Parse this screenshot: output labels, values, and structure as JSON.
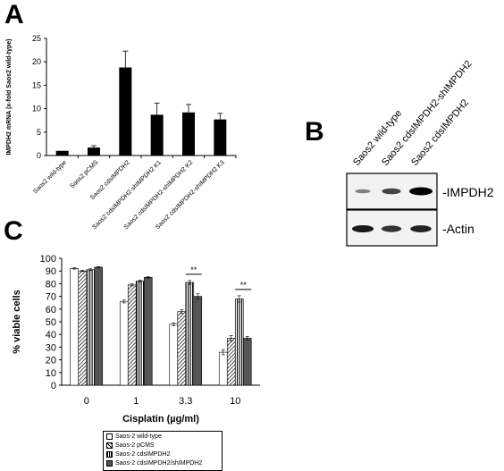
{
  "panels": {
    "a_label": "A",
    "b_label": "B",
    "c_label": "C"
  },
  "blot": {
    "lanes": [
      "Saos2 wild-type",
      "Saos2 cdsIMPDH2-shIMPDH2",
      "Saos2 cdsIMPDH2"
    ],
    "bands": [
      {
        "label": "-IMPDH2",
        "intensities": [
          0.25,
          0.6,
          1.0
        ]
      },
      {
        "label": "-Actin",
        "intensities": [
          0.85,
          0.7,
          0.8
        ]
      }
    ]
  },
  "chart_data": [
    {
      "type": "bar",
      "panel": "A",
      "title": "",
      "xlabel": "",
      "ylabel": "IMPDH2 mRNA (x-fold Saos2 wild-type)",
      "categories": [
        "Saos2 wild-type",
        "Saos2 pCMS",
        "Saos2 cdsIMPDH2",
        "Saos2 cdsIMPDH2-shIMPDH2 K1",
        "Saos2 cdsIMPDH2-shIMPDH2 K2",
        "Saos2 cdsIMPDH2-shIMPDH2 K3"
      ],
      "values": [
        1,
        1.7,
        18.8,
        8.7,
        9.2,
        7.7
      ],
      "errors": [
        0,
        0.4,
        3.5,
        2.5,
        1.7,
        1.3
      ],
      "ylim": [
        0,
        25
      ],
      "yticks": [
        0,
        5,
        10,
        15,
        20,
        25
      ],
      "ytick_labels": [
        "0",
        "5",
        "10",
        "15",
        "20",
        "25"
      ],
      "grid": false,
      "color": "#000000"
    },
    {
      "type": "bar",
      "panel": "C",
      "title": "",
      "xlabel": "Cisplatin (µg/ml)",
      "ylabel": "% viable cells",
      "categories": [
        "0",
        "1",
        "3.3",
        "10"
      ],
      "ylim": [
        0,
        100
      ],
      "yticks": [
        0,
        10,
        20,
        30,
        40,
        50,
        60,
        70,
        80,
        90,
        100
      ],
      "ytick_labels": [
        "0",
        "10",
        "20",
        "30",
        "40",
        "50",
        "60",
        "70",
        "80",
        "90",
        "100"
      ],
      "series": [
        {
          "name": "Saos-2 wild-type",
          "values": [
            92,
            66,
            48,
            26
          ],
          "errors": [
            0.5,
            1.2,
            1.2,
            2
          ],
          "fill": "white"
        },
        {
          "name": "Saos-2 pCMS",
          "values": [
            90,
            79,
            58,
            37
          ],
          "errors": [
            0.5,
            0.8,
            1.5,
            2.2
          ],
          "fill": "diagonal"
        },
        {
          "name": "Saos-2 cdsIMPDH2",
          "values": [
            91,
            82,
            81,
            68
          ],
          "errors": [
            0.7,
            0.8,
            1.5,
            2.5
          ],
          "fill": "vertical"
        },
        {
          "name": "Saos-2 cdsIMPDH2/shIMPDH2",
          "values": [
            93,
            85,
            70,
            37
          ],
          "errors": [
            0.4,
            0.5,
            2,
            1.5
          ],
          "fill": "gray"
        }
      ],
      "annotations": [
        {
          "category": "3.3",
          "text": "**"
        },
        {
          "category": "10",
          "text": "**"
        }
      ],
      "legend": "bottom",
      "grid": false
    }
  ]
}
